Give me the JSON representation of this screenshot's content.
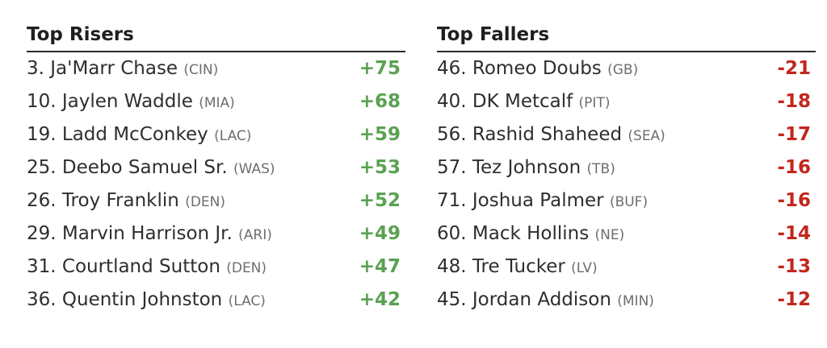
{
  "colors": {
    "positive": "#5aa152",
    "negative": "#c2271d",
    "title_text": "#1f1f1f",
    "player_text": "#2e2e2e",
    "team_text": "#6e6e6e",
    "rule": "#2b2b2b",
    "background": "#ffffff"
  },
  "chart_data": [
    {
      "type": "table",
      "title": "Top Risers",
      "rows": [
        {
          "rank": 3,
          "player": "Ja'Marr Chase",
          "team": "CIN",
          "change": 75
        },
        {
          "rank": 10,
          "player": "Jaylen Waddle",
          "team": "MIA",
          "change": 68
        },
        {
          "rank": 19,
          "player": "Ladd McConkey",
          "team": "LAC",
          "change": 59
        },
        {
          "rank": 25,
          "player": "Deebo Samuel Sr.",
          "team": "WAS",
          "change": 53
        },
        {
          "rank": 26,
          "player": "Troy Franklin",
          "team": "DEN",
          "change": 52
        },
        {
          "rank": 29,
          "player": "Marvin Harrison Jr.",
          "team": "ARI",
          "change": 49
        },
        {
          "rank": 31,
          "player": "Courtland Sutton",
          "team": "DEN",
          "change": 47
        },
        {
          "rank": 36,
          "player": "Quentin Johnston",
          "team": "LAC",
          "change": 42
        }
      ]
    },
    {
      "type": "table",
      "title": "Top Fallers",
      "rows": [
        {
          "rank": 46,
          "player": "Romeo Doubs",
          "team": "GB",
          "change": -21
        },
        {
          "rank": 40,
          "player": "DK Metcalf",
          "team": "PIT",
          "change": -18
        },
        {
          "rank": 56,
          "player": "Rashid Shaheed",
          "team": "SEA",
          "change": -17
        },
        {
          "rank": 57,
          "player": "Tez Johnson",
          "team": "TB",
          "change": -16
        },
        {
          "rank": 71,
          "player": "Joshua Palmer",
          "team": "BUF",
          "change": -16
        },
        {
          "rank": 60,
          "player": "Mack Hollins",
          "team": "NE",
          "change": -14
        },
        {
          "rank": 48,
          "player": "Tre Tucker",
          "team": "LV",
          "change": -13
        },
        {
          "rank": 45,
          "player": "Jordan Addison",
          "team": "MIN",
          "change": -12
        }
      ]
    }
  ]
}
